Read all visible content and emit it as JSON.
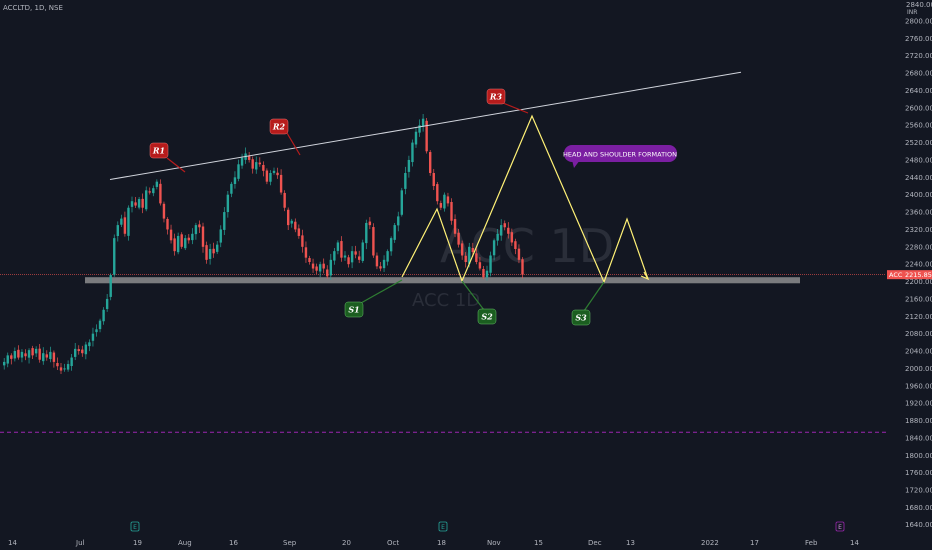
{
  "header": {
    "symbol_line": "ACCLTD, 1D, NSE",
    "currency": "INR",
    "top_price": "2840.00"
  },
  "watermark": {
    "big": "ACC 1D",
    "small": "ACC 1D"
  },
  "price_tag": {
    "symbol": "ACC",
    "price": "2215.85",
    "value": 2215.85
  },
  "annotations": {
    "r1": "R1",
    "r2": "R2",
    "r3": "R3",
    "s1": "S1",
    "s2": "S2",
    "s3": "S3",
    "callout": "HEAD AND SHOULDER FORMATION"
  },
  "colors": {
    "background": "#131722",
    "up": "#26a69a",
    "down": "#ef5350",
    "resistance_tag": "#b71c1c",
    "support_tag": "#1b5e20",
    "pattern_line": "#fff176",
    "trendline": "#d1d4dc",
    "support_zone": "#9e9e9e",
    "callout": "#7b1fa2",
    "dashed_line": "#9c27b0"
  },
  "event_markers": {
    "earnings_label": "E"
  },
  "chart_data": {
    "type": "candlestick",
    "y_axis": {
      "ticks": [
        2800,
        2760,
        2720,
        2680,
        2640,
        2600,
        2560,
        2520,
        2480,
        2440,
        2400,
        2360,
        2320,
        2280,
        2240,
        2200,
        2160,
        2120,
        2080,
        2040,
        2000,
        1960,
        1920,
        1880,
        1840,
        1800,
        1760,
        1720,
        1680,
        1640
      ],
      "labels": [
        "2800.00",
        "2760.00",
        "2720.00",
        "2680.00",
        "2640.00",
        "2600.00",
        "2560.00",
        "2520.00",
        "2480.00",
        "2440.00",
        "2400.00",
        "2360.00",
        "2320.00",
        "2280.00",
        "2240.00",
        "2200.00",
        "2160.00",
        "2120.00",
        "2080.00",
        "2040.00",
        "2000.00",
        "1960.00",
        "1920.00",
        "1880.00",
        "1840.00",
        "1800.00",
        "1760.00",
        "1720.00",
        "1680.00",
        "1640.00"
      ],
      "range": [
        1625,
        2845
      ]
    },
    "x_axis": {
      "ticks": [
        "14",
        "Jul",
        "19",
        "Aug",
        "16",
        "Sep",
        "20",
        "Oct",
        "18",
        "Nov",
        "15",
        "Dec",
        "13",
        "2022",
        "17",
        "Feb",
        "14"
      ]
    },
    "support_zone": [
      2196,
      2210
    ],
    "dashed_level": 1853,
    "trendline": [
      [
        0,
        2435
      ],
      [
        132,
        2682
      ]
    ],
    "close_series": [
      2015,
      2030,
      2022,
      2040,
      2025,
      2038,
      2028,
      2042,
      2030,
      2045,
      2020,
      2035,
      2025,
      2038,
      2015,
      2005,
      1995,
      2000,
      2010,
      2025,
      2045,
      2040,
      2035,
      2055,
      2060,
      2080,
      2090,
      2110,
      2135,
      2160,
      2215,
      2300,
      2330,
      2345,
      2310,
      2370,
      2385,
      2375,
      2390,
      2370,
      2410,
      2405,
      2415,
      2430,
      2380,
      2345,
      2320,
      2295,
      2270,
      2305,
      2280,
      2300,
      2295,
      2310,
      2330,
      2325,
      2280,
      2250,
      2275,
      2265,
      2285,
      2320,
      2360,
      2400,
      2425,
      2440,
      2470,
      2485,
      2495,
      2480,
      2460,
      2475,
      2470,
      2455,
      2430,
      2450,
      2455,
      2445,
      2405,
      2370,
      2330,
      2340,
      2320,
      2305,
      2280,
      2255,
      2245,
      2230,
      2225,
      2240,
      2230,
      2212,
      2250,
      2270,
      2290,
      2255,
      2260,
      2240,
      2270,
      2262,
      2250,
      2290,
      2335,
      2330,
      2260,
      2235,
      2230,
      2250,
      2270,
      2300,
      2330,
      2350,
      2410,
      2450,
      2480,
      2520,
      2545,
      2560,
      2575,
      2500,
      2450,
      2420,
      2385,
      2370,
      2400,
      2380,
      2340,
      2310,
      2285,
      2260,
      2245,
      2280,
      2268,
      2245,
      2230,
      2210,
      2225,
      2260,
      2295,
      2310,
      2330,
      2325,
      2310,
      2290,
      2275,
      2250,
      2216
    ]
  }
}
